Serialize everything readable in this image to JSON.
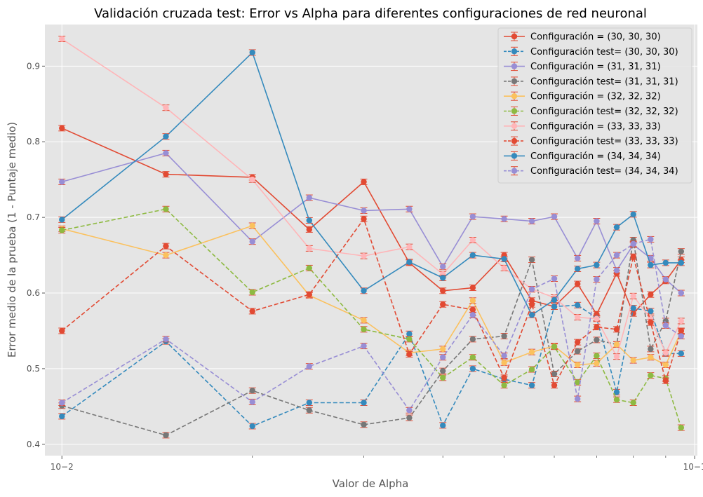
{
  "chart_data": {
    "type": "line",
    "title": "Validación cruzada test: Error  vs Alpha para diferentes configuraciones de red neuronal",
    "xlabel": "Valor de Alpha",
    "ylabel": "Error medio de la prueba (1 - Puntaje medio)",
    "xscale": "log",
    "xlim": [
      0.0094,
      0.101
    ],
    "ylim": [
      0.385,
      0.955
    ],
    "x_ticks": [
      0.01,
      0.1
    ],
    "x_tick_labels": [
      "10−2",
      "10−1"
    ],
    "y_ticks": [
      0.4,
      0.5,
      0.6,
      0.7,
      0.8,
      0.9
    ],
    "y_tick_labels": [
      "0.4",
      "0.5",
      "0.6",
      "0.7",
      "0.8",
      "0.9"
    ],
    "grid": true,
    "legend": "top-right",
    "x": [
      0.01,
      0.0146,
      0.02,
      0.0246,
      0.03,
      0.0354,
      0.04,
      0.0446,
      0.05,
      0.0553,
      0.06,
      0.0653,
      0.07,
      0.0753,
      0.08,
      0.0852,
      0.09,
      0.0952
    ],
    "series": [
      {
        "name": "Configuración = (30, 30, 30)",
        "color": "#E24A33",
        "dash": "solid",
        "values": [
          0.818,
          0.757,
          0.753,
          0.684,
          0.747,
          0.64,
          0.603,
          0.607,
          0.65,
          0.59,
          0.582,
          0.612,
          0.572,
          0.626,
          0.573,
          0.598,
          0.616,
          0.644
        ]
      },
      {
        "name": "Configuración test= (30, 30, 30)",
        "color": "#348ABD",
        "dash": "dashed",
        "values": [
          0.437,
          0.536,
          0.424,
          0.455,
          0.455,
          0.546,
          0.425,
          0.5,
          0.486,
          0.478,
          0.582,
          0.584,
          0.567,
          0.469,
          0.58,
          0.576,
          0.52,
          0.52
        ]
      },
      {
        "name": "Configuración = (31, 31, 31)",
        "color": "#988ED5",
        "dash": "solid",
        "values": [
          0.747,
          0.785,
          0.668,
          0.726,
          0.709,
          0.711,
          0.635,
          0.701,
          0.698,
          0.695,
          0.701,
          0.646,
          0.695,
          0.63,
          0.664,
          0.646,
          0.618,
          0.6
        ]
      },
      {
        "name": "Configuración test= (31, 31, 31)",
        "color": "#777777",
        "dash": "dashed",
        "values": [
          0.451,
          0.412,
          0.471,
          0.445,
          0.426,
          0.435,
          0.497,
          0.539,
          0.543,
          0.644,
          0.493,
          0.523,
          0.538,
          0.532,
          0.67,
          0.526,
          0.563,
          0.655
        ]
      },
      {
        "name": "Configuración = (32, 32, 32)",
        "color": "#FBC15E",
        "dash": "solid",
        "values": [
          0.685,
          0.65,
          0.689,
          0.597,
          0.564,
          0.521,
          0.526,
          0.59,
          0.508,
          0.522,
          0.53,
          0.505,
          0.507,
          0.532,
          0.511,
          0.515,
          0.505,
          0.549
        ]
      },
      {
        "name": "Configuración test= (32, 32, 32)",
        "color": "#8EBA42",
        "dash": "dashed",
        "values": [
          0.683,
          0.711,
          0.601,
          0.633,
          0.552,
          0.539,
          0.488,
          0.515,
          0.478,
          0.499,
          0.529,
          0.482,
          0.517,
          0.459,
          0.455,
          0.491,
          0.487,
          0.422
        ]
      },
      {
        "name": "Configuración = (33, 33, 33)",
        "color": "#FFB5B8",
        "dash": "solid",
        "values": [
          0.936,
          0.845,
          0.75,
          0.659,
          0.649,
          0.661,
          0.625,
          0.67,
          0.633,
          0.605,
          0.594,
          0.568,
          0.566,
          0.516,
          0.596,
          0.566,
          0.521,
          0.563
        ]
      },
      {
        "name": "Configuración test= (33, 33, 33)",
        "color": "#E24A33",
        "dash": "dashed",
        "values": [
          0.55,
          0.662,
          0.576,
          0.598,
          0.698,
          0.519,
          0.585,
          0.578,
          0.488,
          0.585,
          0.478,
          0.535,
          0.555,
          0.552,
          0.648,
          0.561,
          0.484,
          0.55
        ]
      },
      {
        "name": "Configuración = (34, 34, 34)",
        "color": "#348ABD",
        "dash": "solid",
        "values": [
          0.697,
          0.807,
          0.918,
          0.696,
          0.603,
          0.641,
          0.62,
          0.65,
          0.645,
          0.571,
          0.591,
          0.632,
          0.637,
          0.687,
          0.704,
          0.637,
          0.64,
          0.64
        ]
      },
      {
        "name": "Configuración test= (34, 34, 34)",
        "color": "#988ED5",
        "dash": "dashed",
        "values": [
          0.455,
          0.539,
          0.456,
          0.503,
          0.53,
          0.445,
          0.515,
          0.571,
          0.517,
          0.605,
          0.619,
          0.46,
          0.618,
          0.65,
          0.665,
          0.671,
          0.557,
          0.543
        ]
      }
    ]
  }
}
